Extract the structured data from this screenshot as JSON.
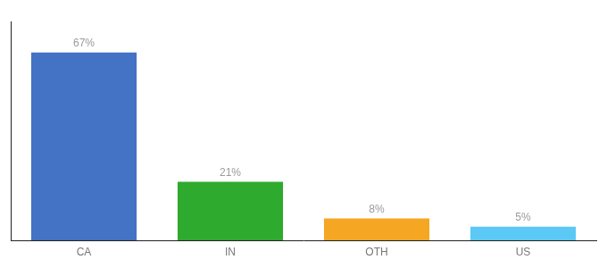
{
  "chart_data": {
    "type": "bar",
    "categories": [
      "CA",
      "IN",
      "OTH",
      "US"
    ],
    "values": [
      67,
      21,
      8,
      5
    ],
    "value_labels": [
      "67%",
      "21%",
      "8%",
      "5%"
    ],
    "colors": [
      "#4472c4",
      "#2eaa2e",
      "#f5a623",
      "#5bc8f5"
    ],
    "ylim": [
      0,
      78
    ],
    "grid": false,
    "tick_labels": "x",
    "data_labels": true
  }
}
